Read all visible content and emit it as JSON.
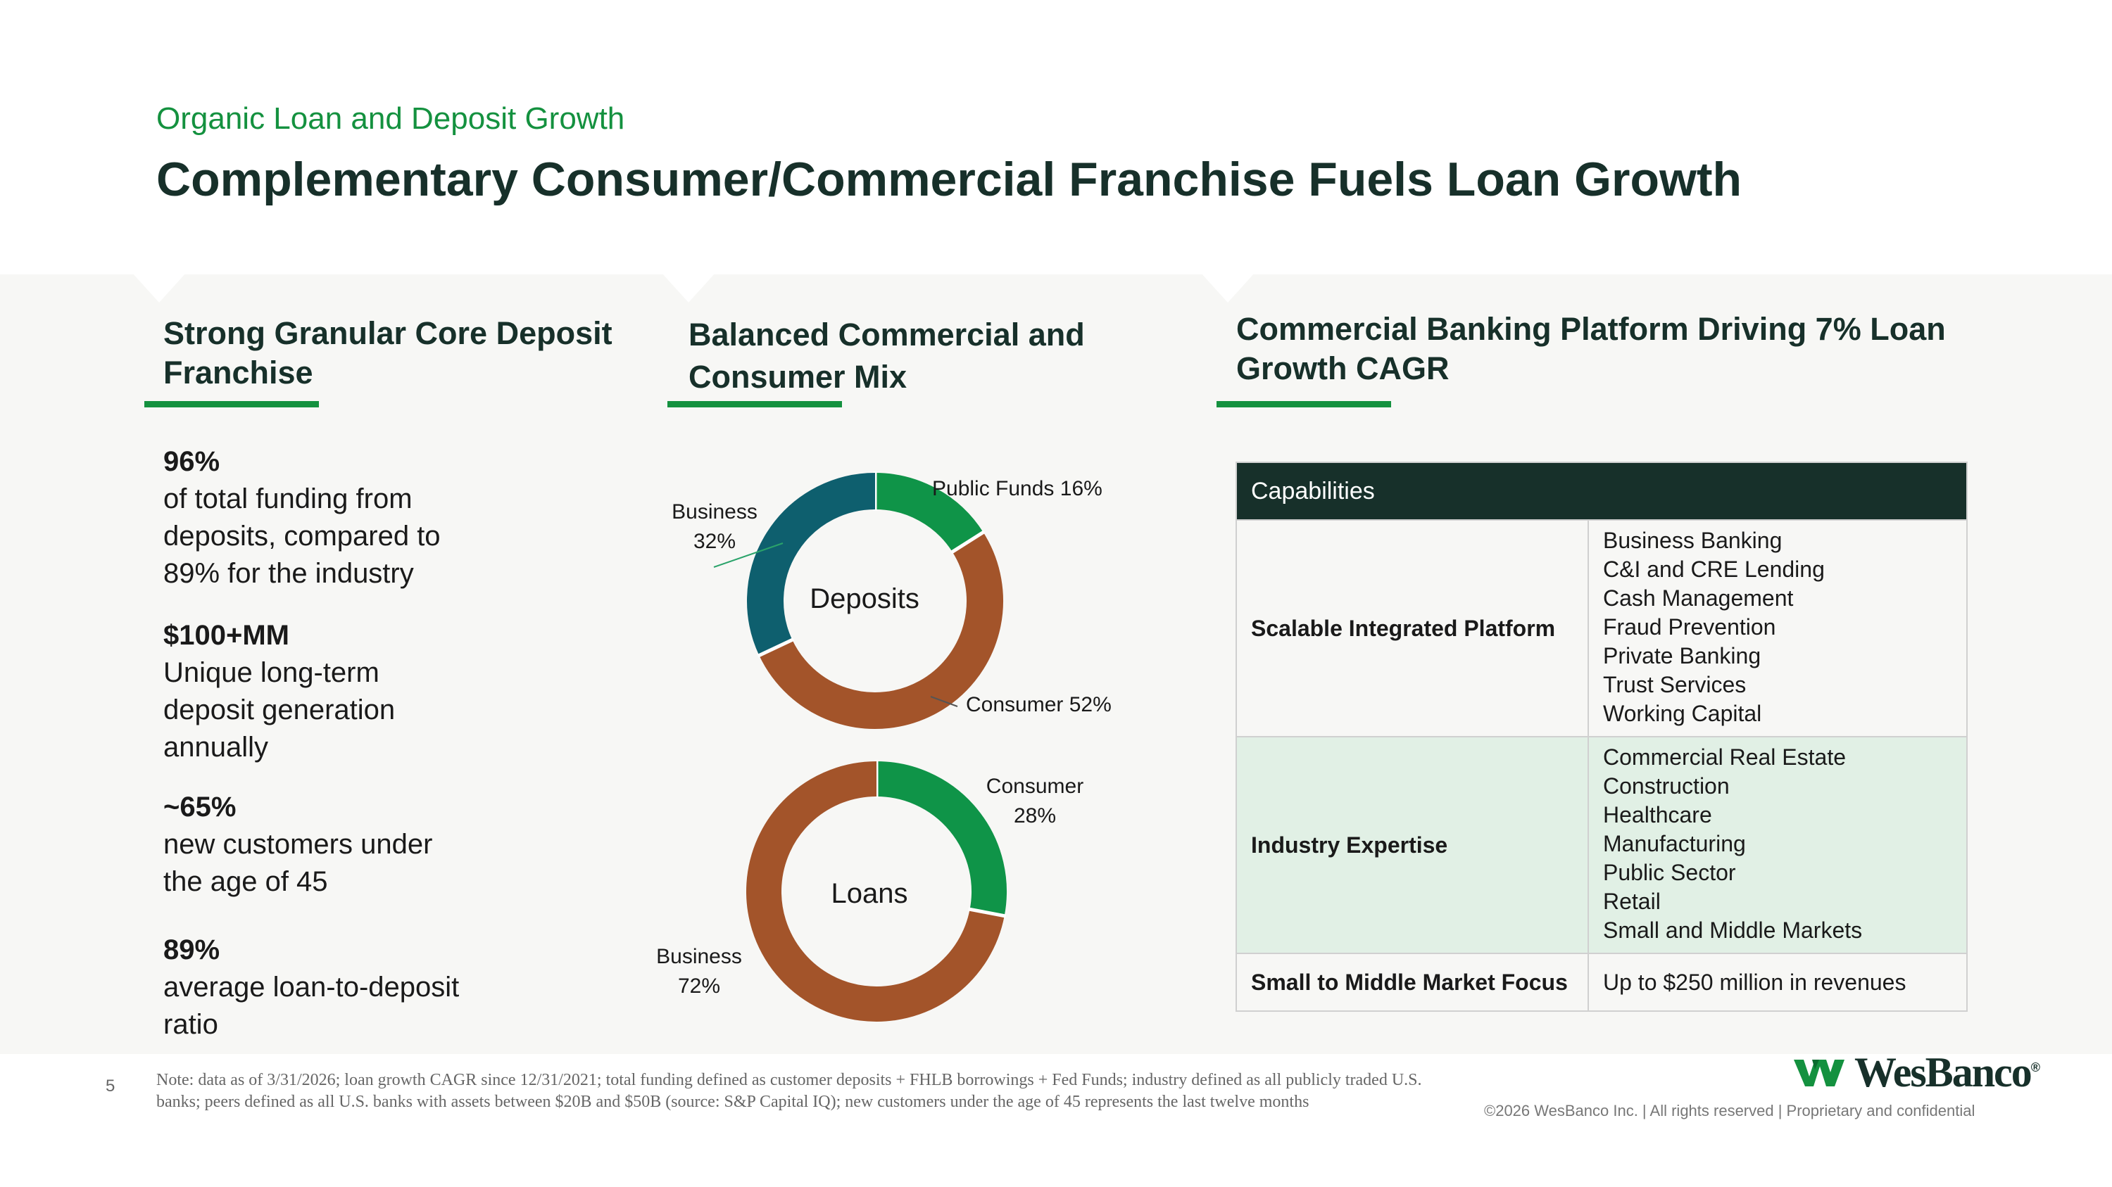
{
  "header": {
    "kicker": "Organic Loan and Deposit Growth",
    "title": "Complementary Consumer/Commercial Franchise Fuels Loan Growth"
  },
  "sections": {
    "left_title": "Strong Granular Core Deposit Franchise",
    "middle_title": "Balanced Commercial and Consumer Mix",
    "right_title": "Commercial Banking Platform Driving 7% Loan Growth CAGR"
  },
  "stats": [
    {
      "value": "96%",
      "lines": [
        "of total funding from",
        "deposits, compared to",
        "89% for the industry"
      ]
    },
    {
      "value": "$100+MM",
      "lines": [
        "Unique long-term",
        "deposit generation",
        "annually"
      ]
    },
    {
      "value": "~65%",
      "lines": [
        "new customers under",
        "the age of 45"
      ]
    },
    {
      "value": "89%",
      "lines": [
        "average loan-to-deposit",
        "ratio"
      ]
    }
  ],
  "chart_data": [
    {
      "type": "pie",
      "center_label": "Deposits",
      "slices": [
        {
          "label": "Public Funds",
          "value": 16,
          "color": "#0f9448"
        },
        {
          "label": "Consumer",
          "value": 52,
          "color": "#a3542a"
        },
        {
          "label": "Business",
          "value": 32,
          "color": "#0e5f6e"
        }
      ],
      "slice_labels": [
        "Public Funds 16%",
        "Consumer 52%",
        "Business",
        "32%"
      ]
    },
    {
      "type": "pie",
      "center_label": "Loans",
      "slices": [
        {
          "label": "Consumer",
          "value": 28,
          "color": "#0f9448"
        },
        {
          "label": "Business",
          "value": 72,
          "color": "#a3542a"
        }
      ],
      "slice_labels": [
        "Consumer",
        "28%",
        "Business",
        "72%"
      ]
    }
  ],
  "table": {
    "header": "Capabilities",
    "rows": [
      {
        "label": "Scalable Integrated Platform",
        "items": [
          "Business Banking",
          "C&I and CRE Lending",
          "Cash Management",
          "Fraud Prevention",
          "Private Banking",
          "Trust Services",
          "Working Capital"
        ]
      },
      {
        "label": "Industry Expertise",
        "items": [
          "Commercial Real Estate",
          "Construction",
          "Healthcare",
          "Manufacturing",
          "Public Sector",
          "Retail",
          "Small and Middle Markets"
        ]
      },
      {
        "label": "Small to Middle Market Focus",
        "items": [
          "Up to $250 million in revenues"
        ]
      }
    ]
  },
  "footer": {
    "page_number": "5",
    "note": "Note: data as of 3/31/2026; loan growth CAGR since 12/31/2021; total funding defined as customer deposits + FHLB borrowings + Fed Funds; industry defined as all publicly traded U.S. banks; peers defined as all U.S. banks with assets between $20B and $50B (source: S&P Capital IQ); new customers under the age of 45 represents the last twelve months",
    "copyright": "©2026 WesBanco Inc.  |  All rights reserved  |  Proprietary and confidential",
    "logo_text": "WesBanco",
    "logo_mark": "®"
  },
  "colors": {
    "green": "#14913f",
    "dark": "#17302a",
    "orange": "#a3542a",
    "teal": "#0e5f6e",
    "table_alt": "#e1f0e5"
  }
}
